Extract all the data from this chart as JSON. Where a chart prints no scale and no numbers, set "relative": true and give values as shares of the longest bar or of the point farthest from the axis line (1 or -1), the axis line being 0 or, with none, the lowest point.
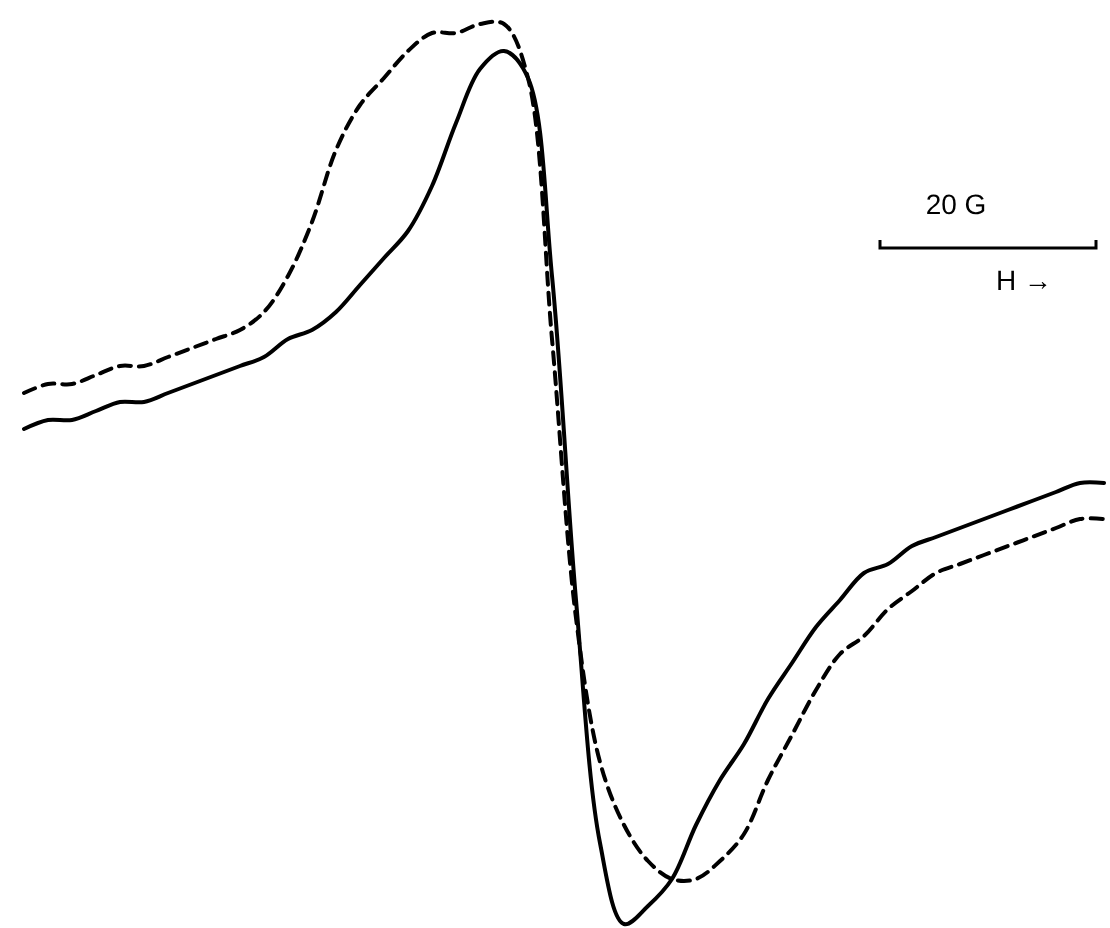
{
  "chart_data": {
    "type": "line",
    "relative": true,
    "categories": [
      null,
      null,
      null,
      null,
      null,
      null,
      null,
      null,
      null,
      null,
      null,
      null,
      null,
      null,
      null,
      null,
      null,
      null,
      null,
      null,
      null,
      null,
      null,
      null,
      null,
      null,
      null,
      null,
      null,
      null,
      null,
      null,
      null,
      null,
      null,
      null,
      null,
      null,
      null,
      null,
      null,
      null,
      null,
      null,
      null,
      null
    ],
    "series": [
      {
        "color": "#000000",
        "line_style": "solid",
        "values": [
          0.55,
          0.56,
          0.56,
          0.57,
          0.58,
          0.58,
          0.59,
          0.6,
          0.61,
          0.62,
          0.63,
          0.65,
          0.66,
          0.68,
          0.71,
          0.74,
          0.77,
          0.82,
          0.89,
          0.95,
          0.97,
          0.94,
          0.72,
          0.36,
          0.09,
          0,
          0.02,
          0.05,
          0.11,
          0.16,
          0.2,
          0.25,
          0.29,
          0.33,
          0.36,
          0.39,
          0.4,
          0.42,
          0.43,
          0.44,
          0.45,
          0.46,
          0.47,
          0.48,
          0.49,
          0.49
        ]
      },
      {
        "color": "#000000",
        "line_style": "dashed",
        "values": [
          0.59,
          0.6,
          0.6,
          0.61,
          0.62,
          0.62,
          0.63,
          0.64,
          0.65,
          0.66,
          0.68,
          0.72,
          0.78,
          0.86,
          0.91,
          0.94,
          0.97,
          0.99,
          0.99,
          1.0,
          1.0,
          0.94,
          0.65,
          0.34,
          0.18,
          0.11,
          0.07,
          0.05,
          0.05,
          0.07,
          0.1,
          0.16,
          0.21,
          0.26,
          0.3,
          0.32,
          0.35,
          0.37,
          0.39,
          0.4,
          0.41,
          0.42,
          0.43,
          0.44,
          0.45,
          0.45
        ]
      }
    ],
    "annotations": [
      "20 G",
      "H →"
    ],
    "grid": false
  }
}
